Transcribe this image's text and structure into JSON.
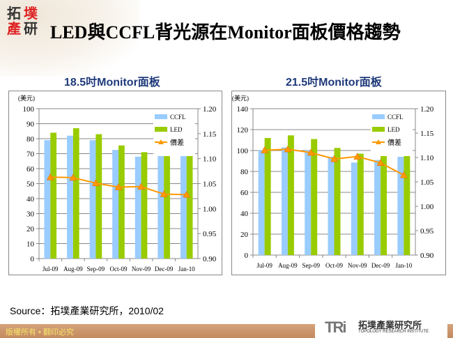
{
  "header": {
    "title": "LED與CCFL背光源在Monitor面板價格趨勢",
    "logo_text": "拓墣產研"
  },
  "source": "Source：拓墣產業研究所，2010/02",
  "footer": {
    "copyright": "版權所有 • 翻印必究",
    "brand_mark": "TRi",
    "brand_cn": "拓墣產業研究所",
    "brand_en": "TOPOLOGY RESEARCH INSTITUTE"
  },
  "colors": {
    "ccfl": "#99ccff",
    "led": "#99cc00",
    "ratio": "#ff9900"
  },
  "chart_data": [
    {
      "type": "bar+line",
      "title": "18.5吋Monitor面板",
      "ylabel": "(美元)",
      "categories": [
        "Jul-09",
        "Aug-09",
        "Sep-09",
        "Oct-09",
        "Nov-09",
        "Dec-09",
        "Jan-10"
      ],
      "ylim": [
        0,
        100
      ],
      "yticks": [
        0,
        10,
        20,
        30,
        40,
        50,
        60,
        70,
        80,
        90,
        100
      ],
      "y2lim": [
        0.9,
        1.2
      ],
      "y2ticks": [
        "0.90",
        "0.95",
        "1.00",
        "1.05",
        "1.10",
        "1.15",
        "1.20"
      ],
      "grid": true,
      "legend": "top-right",
      "series": [
        {
          "name": "CCFL",
          "axis": "left",
          "values": [
            79,
            82,
            79,
            72.5,
            68,
            70.5,
            73
          ]
        },
        {
          "name": "LED",
          "axis": "left",
          "values": [
            84,
            87,
            83,
            75.5,
            71,
            72,
            75.5
          ]
        },
        {
          "name": "價差",
          "axis": "right",
          "values": [
            1.063,
            1.062,
            1.051,
            1.043,
            1.044,
            1.029,
            1.028
          ]
        }
      ]
    },
    {
      "type": "bar+line",
      "title": "21.5吋Monitor面板",
      "ylabel": "(美元)",
      "categories": [
        "Jul-09",
        "Aug-09",
        "Sep-09",
        "Oct-09",
        "Nov-09",
        "Dec-09",
        "Jan-10"
      ],
      "ylim": [
        0,
        140
      ],
      "yticks": [
        0,
        20,
        40,
        60,
        80,
        100,
        120,
        140
      ],
      "y2lim": [
        0.9,
        1.2
      ],
      "y2ticks": [
        "0.90",
        "0.95",
        "1.00",
        "1.05",
        "1.10",
        "1.15",
        "1.20"
      ],
      "grid": true,
      "legend": "top-right",
      "series": [
        {
          "name": "CCFL",
          "axis": "left",
          "values": [
            100.5,
            103,
            100,
            94,
            88.5,
            91,
            94
          ]
        },
        {
          "name": "LED",
          "axis": "left",
          "values": [
            112,
            114.5,
            111,
            102.5,
            97,
            98.5,
            99.5
          ]
        },
        {
          "name": "價差",
          "axis": "right",
          "values": [
            1.115,
            1.117,
            1.11,
            1.097,
            1.102,
            1.089,
            1.064
          ]
        }
      ]
    }
  ]
}
